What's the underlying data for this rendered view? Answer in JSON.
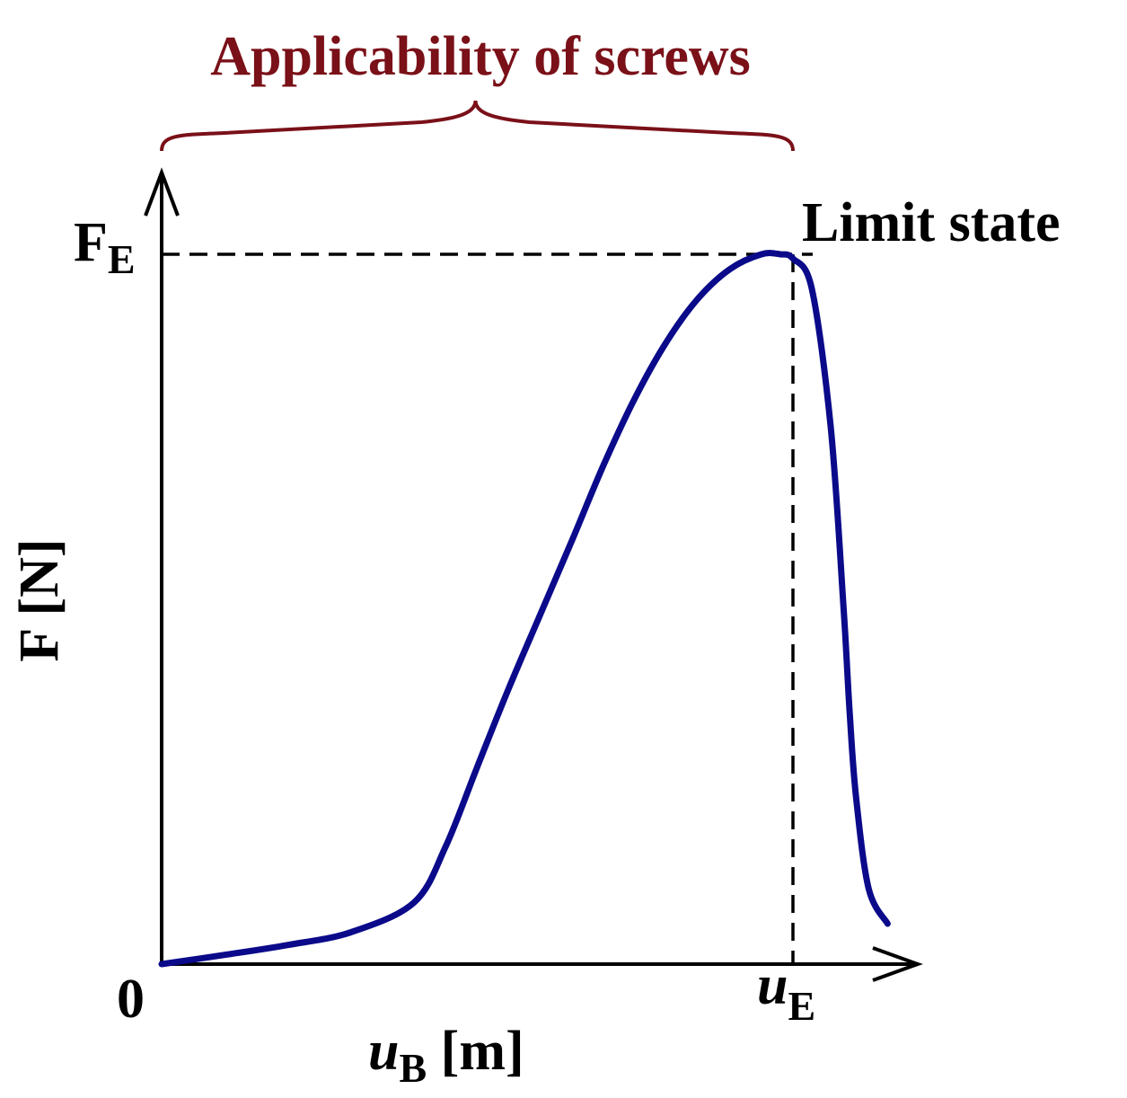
{
  "colors": {
    "curve": "#0a0a8a",
    "brace": "#7a1018",
    "axis": "#000000",
    "text": "#000000",
    "bracket_text": "#7a1018"
  },
  "labels": {
    "applicability": "Applicability of screws",
    "limit_state": "Limit state",
    "origin": "0",
    "fe_main": "F",
    "fe_sub": "E",
    "ue_main": "u",
    "ue_sub": "E",
    "ylabel": "F [N]",
    "xlabel_main": "u",
    "xlabel_sub": "B",
    "xlabel_unit": " [m]"
  },
  "chart_data": {
    "type": "line",
    "title": "",
    "xlabel": "uB [m]",
    "ylabel": "F [N]",
    "xlim": [
      0,
      1.2
    ],
    "ylim": [
      0,
      1.05
    ],
    "grid": false,
    "legend": "none",
    "annotations": [
      {
        "text": "Limit state",
        "x": 1.0,
        "y": 1.0
      },
      {
        "text": "Applicability of screws",
        "x_range": [
          0,
          1.0
        ]
      }
    ],
    "reference_lines": [
      {
        "axis": "y",
        "value": 1.0,
        "label": "FE",
        "style": "dashed"
      },
      {
        "axis": "x",
        "value": 1.0,
        "label": "uE",
        "style": "dashed"
      }
    ],
    "series": [
      {
        "x": [
          0,
          0.1,
          0.2,
          0.3,
          0.4,
          0.45,
          0.5,
          0.55,
          0.6,
          0.65,
          0.7,
          0.75,
          0.8,
          0.85,
          0.9,
          0.95,
          0.98,
          1.0,
          1.03,
          1.06,
          1.08,
          1.09,
          1.1,
          1.12,
          1.15
        ],
        "y": [
          0,
          0.013,
          0.027,
          0.045,
          0.087,
          0.166,
          0.278,
          0.389,
          0.493,
          0.597,
          0.703,
          0.798,
          0.877,
          0.938,
          0.979,
          1.0,
          1.0,
          0.994,
          0.951,
          0.755,
          0.505,
          0.352,
          0.235,
          0.106,
          0.057
        ]
      }
    ]
  }
}
